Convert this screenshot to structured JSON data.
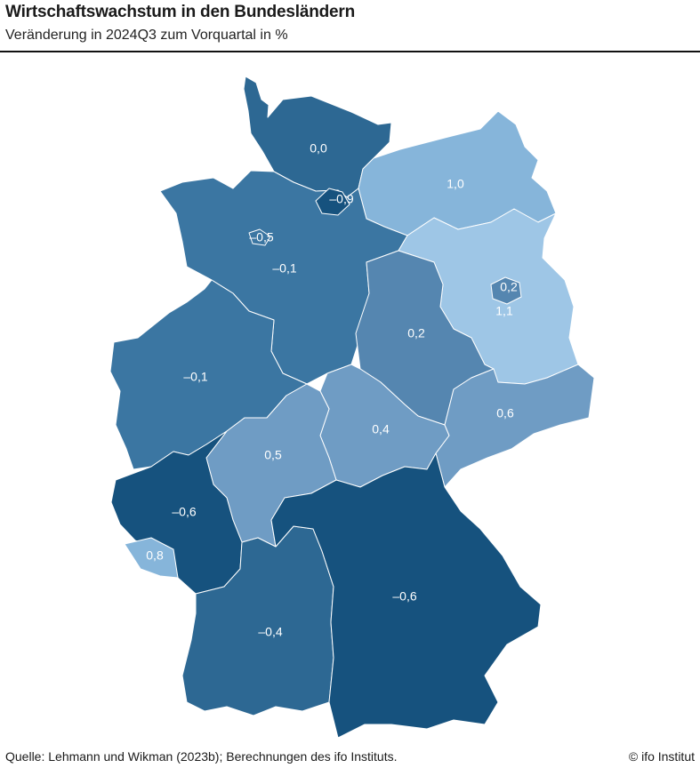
{
  "header": {
    "title": "Wirtschaftswachstum in den Bundesländern",
    "subtitle": "Veränderung in 2024Q3 zum Vorquartal in %"
  },
  "footer": {
    "source": "Quelle: Lehmann und Wikman (2023b); Berechnungen des ifo Instituts.",
    "credit": "© ifo Institut"
  },
  "colors": {
    "dark": "#16527e",
    "mid_dark": "#2d6893",
    "mid": "#3b76a2",
    "mid_light": "#5586b0",
    "light_mid": "#6f9cc4",
    "light": "#86b5da",
    "lightest": "#9ec6e6",
    "label_on_dark": "#ffffff",
    "label_on_light": "#ffffff"
  },
  "map_data": {
    "unit": "%",
    "regions": [
      {
        "name": "Schleswig-Holstein",
        "value": "0,0"
      },
      {
        "name": "Hamburg",
        "value": "–0,9"
      },
      {
        "name": "Mecklenburg-Vorpommern",
        "value": "1,0"
      },
      {
        "name": "Bremen",
        "value": "–0,5"
      },
      {
        "name": "Niedersachsen",
        "value": "–0,1"
      },
      {
        "name": "Berlin",
        "value": "0,2"
      },
      {
        "name": "Brandenburg",
        "value": "1,1"
      },
      {
        "name": "Sachsen-Anhalt",
        "value": "0,2"
      },
      {
        "name": "Nordrhein-Westfalen",
        "value": "–0,1"
      },
      {
        "name": "Thüringen",
        "value": "0,4"
      },
      {
        "name": "Sachsen",
        "value": "0,6"
      },
      {
        "name": "Hessen",
        "value": "0,5"
      },
      {
        "name": "Rheinland-Pfalz",
        "value": "–0,6"
      },
      {
        "name": "Saarland",
        "value": "0,8"
      },
      {
        "name": "Baden-Württemberg",
        "value": "–0,4"
      },
      {
        "name": "Bayern",
        "value": "–0,6"
      }
    ]
  }
}
